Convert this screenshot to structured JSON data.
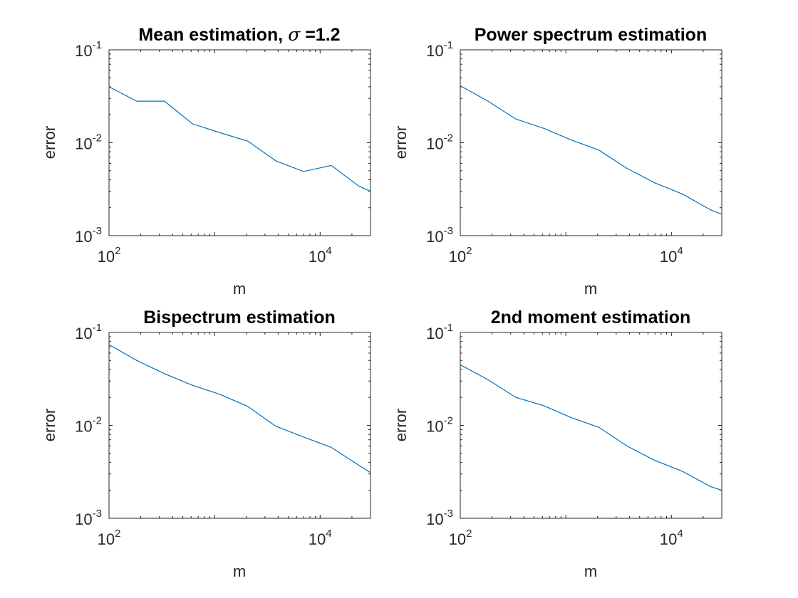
{
  "figure": {
    "background": "#ffffff",
    "axis_color": "#262626",
    "line_color": "#0072BD"
  },
  "chart_data": [
    {
      "type": "line",
      "title": "Mean estimation, σ =1.2",
      "title_main": "Mean estimation, ",
      "title_symbol": "σ",
      "title_rest": " =1.2",
      "xlabel": "m",
      "ylabel": "error",
      "xscale": "log",
      "yscale": "log",
      "xlim": [
        100,
        30000
      ],
      "ylim": [
        0.001,
        0.1
      ],
      "xticks": [
        {
          "base": "10",
          "exp": "2",
          "value": 100
        },
        {
          "base": "10",
          "exp": "4",
          "value": 10000
        }
      ],
      "yticks": [
        {
          "base": "10",
          "exp": "-1",
          "value": 0.1
        },
        {
          "base": "10",
          "exp": "-2",
          "value": 0.01
        },
        {
          "base": "10",
          "exp": "-3",
          "value": 0.001
        }
      ],
      "grid": false,
      "series": [
        {
          "x": [
            100,
            183,
            336,
            616,
            1129,
            2069,
            3793,
            6952,
            12743,
            23357,
            30000
          ],
          "y": [
            0.04,
            0.028,
            0.028,
            0.016,
            0.0128,
            0.0104,
            0.0064,
            0.0049,
            0.0057,
            0.0034,
            0.003
          ]
        }
      ]
    },
    {
      "type": "line",
      "title": "Power spectrum estimation",
      "xlabel": "m",
      "ylabel": "error",
      "xscale": "log",
      "yscale": "log",
      "xlim": [
        100,
        30000
      ],
      "ylim": [
        0.001,
        0.1
      ],
      "xticks": [
        {
          "base": "10",
          "exp": "2",
          "value": 100
        },
        {
          "base": "10",
          "exp": "4",
          "value": 10000
        }
      ],
      "yticks": [
        {
          "base": "10",
          "exp": "-1",
          "value": 0.1
        },
        {
          "base": "10",
          "exp": "-2",
          "value": 0.01
        },
        {
          "base": "10",
          "exp": "-3",
          "value": 0.001
        }
      ],
      "grid": false,
      "series": [
        {
          "x": [
            100,
            183,
            336,
            616,
            1129,
            2069,
            3793,
            6952,
            12743,
            23357,
            30000
          ],
          "y": [
            0.041,
            0.028,
            0.018,
            0.0143,
            0.0107,
            0.0083,
            0.0053,
            0.0037,
            0.0028,
            0.0019,
            0.0017
          ]
        }
      ]
    },
    {
      "type": "line",
      "title": "Bispectrum estimation",
      "xlabel": "m",
      "ylabel": "error",
      "xscale": "log",
      "yscale": "log",
      "xlim": [
        100,
        30000
      ],
      "ylim": [
        0.001,
        0.1
      ],
      "xticks": [
        {
          "base": "10",
          "exp": "2",
          "value": 100
        },
        {
          "base": "10",
          "exp": "4",
          "value": 10000
        }
      ],
      "yticks": [
        {
          "base": "10",
          "exp": "-1",
          "value": 0.1
        },
        {
          "base": "10",
          "exp": "-2",
          "value": 0.01
        },
        {
          "base": "10",
          "exp": "-3",
          "value": 0.001
        }
      ],
      "grid": false,
      "series": [
        {
          "x": [
            100,
            183,
            336,
            616,
            1129,
            2069,
            3793,
            6952,
            12743,
            23357,
            30000
          ],
          "y": [
            0.074,
            0.05,
            0.036,
            0.027,
            0.0215,
            0.016,
            0.0098,
            0.0075,
            0.0058,
            0.0037,
            0.0031
          ]
        }
      ]
    },
    {
      "type": "line",
      "title": "2nd moment estimation",
      "xlabel": "m",
      "ylabel": "error",
      "xscale": "log",
      "yscale": "log",
      "xlim": [
        100,
        30000
      ],
      "ylim": [
        0.001,
        0.1
      ],
      "xticks": [
        {
          "base": "10",
          "exp": "2",
          "value": 100
        },
        {
          "base": "10",
          "exp": "4",
          "value": 10000
        }
      ],
      "yticks": [
        {
          "base": "10",
          "exp": "-1",
          "value": 0.1
        },
        {
          "base": "10",
          "exp": "-2",
          "value": 0.01
        },
        {
          "base": "10",
          "exp": "-3",
          "value": 0.001
        }
      ],
      "grid": false,
      "series": [
        {
          "x": [
            100,
            183,
            336,
            616,
            1129,
            2069,
            3793,
            6952,
            12743,
            23357,
            30000
          ],
          "y": [
            0.045,
            0.031,
            0.02,
            0.0163,
            0.0121,
            0.0095,
            0.006,
            0.0042,
            0.0032,
            0.0022,
            0.002
          ]
        }
      ]
    }
  ]
}
